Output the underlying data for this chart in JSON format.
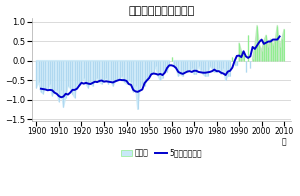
{
  "title": "日本の平均気温平年差",
  "xlabel": "年",
  "xlim": [
    1898,
    2013
  ],
  "ylim": [
    -1.55,
    1.1
  ],
  "yticks": [
    -1.5,
    -1.0,
    -0.5,
    0.0,
    0.5,
    1.0
  ],
  "xticks": [
    1900,
    1910,
    1920,
    1930,
    1940,
    1950,
    1960,
    1970,
    1980,
    1990,
    2000,
    2010
  ],
  "bar_color_pos": "#90ee90",
  "bar_color_neg": "#b0d8f0",
  "fill_pos_color": "#b8e8b8",
  "fill_neg_color": "#c8e8f8",
  "line_color": "#0000cc",
  "background_color": "#ffffff",
  "plot_bg_color": "#ffffff",
  "legend_bar_label": "平年差",
  "legend_line_label": "5年間移動平均",
  "years": [
    1900,
    1901,
    1902,
    1903,
    1904,
    1905,
    1906,
    1907,
    1908,
    1909,
    1910,
    1911,
    1912,
    1913,
    1914,
    1915,
    1916,
    1917,
    1918,
    1919,
    1920,
    1921,
    1922,
    1923,
    1924,
    1925,
    1926,
    1927,
    1928,
    1929,
    1930,
    1931,
    1932,
    1933,
    1934,
    1935,
    1936,
    1937,
    1938,
    1939,
    1940,
    1941,
    1942,
    1943,
    1944,
    1945,
    1946,
    1947,
    1948,
    1949,
    1950,
    1951,
    1952,
    1953,
    1954,
    1955,
    1956,
    1957,
    1958,
    1959,
    1960,
    1961,
    1962,
    1963,
    1964,
    1965,
    1966,
    1967,
    1968,
    1969,
    1970,
    1971,
    1972,
    1973,
    1974,
    1975,
    1976,
    1977,
    1978,
    1979,
    1980,
    1981,
    1982,
    1983,
    1984,
    1985,
    1986,
    1987,
    1988,
    1989,
    1990,
    1991,
    1992,
    1993,
    1994,
    1995,
    1996,
    1997,
    1998,
    1999,
    2000,
    2001,
    2002,
    2003,
    2004,
    2005,
    2006,
    2007,
    2008,
    2009,
    2010
  ],
  "anomalies": [
    -0.7,
    -0.55,
    -0.8,
    -0.85,
    -0.7,
    -0.75,
    -0.6,
    -0.9,
    -0.8,
    -0.75,
    -1.05,
    -0.75,
    -1.2,
    -0.95,
    -0.65,
    -0.7,
    -0.85,
    -0.95,
    -0.6,
    -0.65,
    -0.55,
    -0.45,
    -0.6,
    -0.7,
    -0.55,
    -0.65,
    -0.5,
    -0.45,
    -0.55,
    -0.6,
    -0.5,
    -0.45,
    -0.6,
    -0.5,
    -0.65,
    -0.55,
    -0.5,
    -0.45,
    -0.4,
    -0.55,
    -0.6,
    -0.5,
    -0.55,
    -0.8,
    -0.65,
    -1.25,
    -0.7,
    -0.6,
    -0.65,
    -0.5,
    -0.45,
    -0.35,
    -0.3,
    -0.15,
    -0.4,
    -0.5,
    -0.45,
    -0.2,
    -0.3,
    -0.1,
    0.1,
    -0.1,
    -0.2,
    -0.4,
    -0.35,
    -0.4,
    -0.25,
    -0.3,
    -0.25,
    -0.2,
    -0.35,
    -0.35,
    -0.15,
    -0.25,
    -0.35,
    -0.4,
    -0.4,
    -0.15,
    -0.2,
    -0.3,
    -0.3,
    -0.2,
    -0.35,
    -0.2,
    -0.5,
    -0.4,
    -0.4,
    0.1,
    -0.1,
    -0.1,
    0.45,
    0.25,
    0.15,
    -0.3,
    0.65,
    -0.2,
    0.05,
    0.35,
    0.9,
    0.4,
    0.25,
    0.5,
    0.65,
    0.35,
    0.55,
    0.4,
    0.5,
    0.9,
    0.35,
    0.55,
    0.8
  ]
}
